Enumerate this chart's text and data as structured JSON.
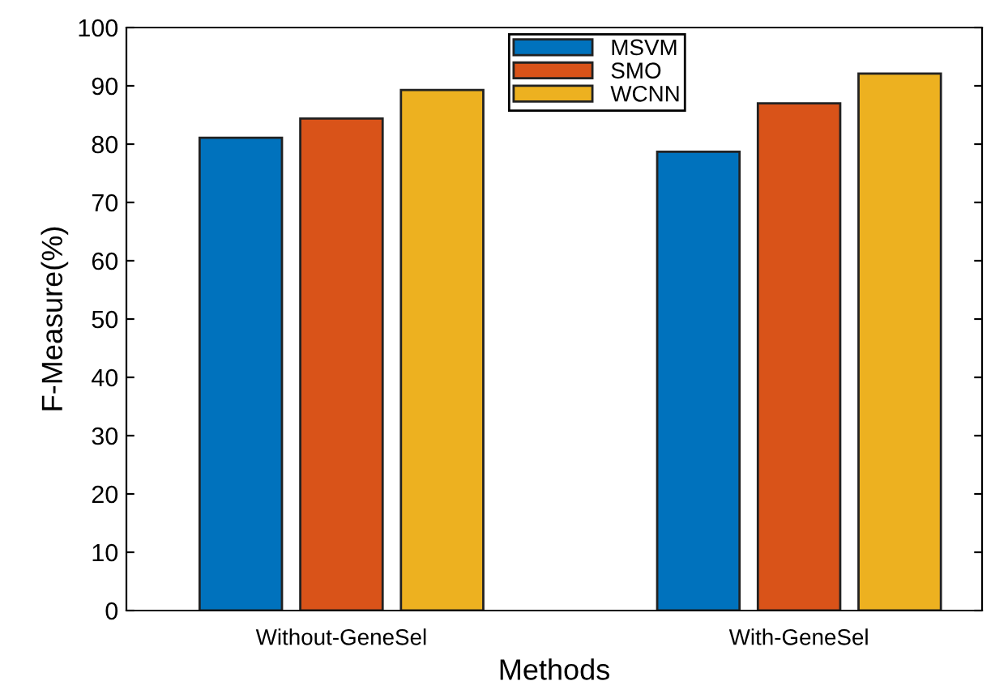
{
  "chart_data": {
    "type": "bar",
    "xlabel": "Methods",
    "ylabel": "F-Measure(%)",
    "categories": [
      "Without-GeneSel",
      "With-GeneSel"
    ],
    "series": [
      {
        "name": "MSVM",
        "color": "#0072bd",
        "values": [
          81.1,
          78.7
        ]
      },
      {
        "name": "SMO",
        "color": "#d95319",
        "values": [
          84.4,
          87.0
        ]
      },
      {
        "name": "WCNN",
        "color": "#edb120",
        "values": [
          89.3,
          92.1
        ]
      }
    ],
    "ylim": [
      0,
      100
    ],
    "yticks": [
      0,
      10,
      20,
      30,
      40,
      50,
      60,
      70,
      80,
      90,
      100
    ],
    "grid": false,
    "legend": "top"
  }
}
